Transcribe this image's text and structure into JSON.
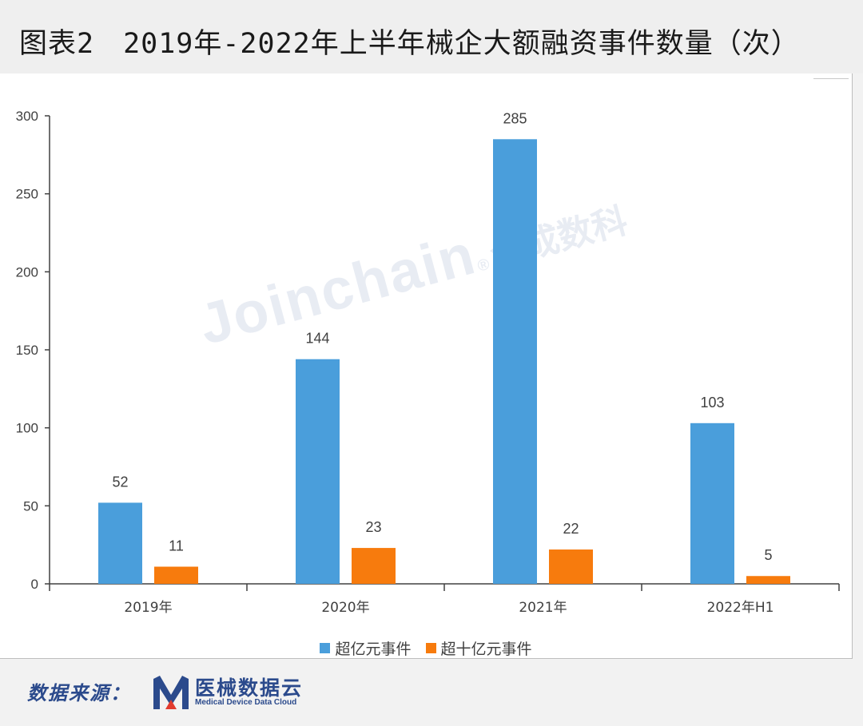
{
  "title": "图表2　2019年-2022年上半年械企大额融资事件数量（次）",
  "watermark": {
    "text": "Joinchain",
    "registered": "®",
    "cn": "众成数科"
  },
  "colors": {
    "series1": "#4a9edb",
    "series2": "#f77b0d",
    "brand": "#2b4a8c",
    "logo_accent": "#e23b2e"
  },
  "chart_data": {
    "type": "bar",
    "title": "",
    "xlabel": "",
    "ylabel": "",
    "categories": [
      "2019年",
      "2020年",
      "2021年",
      "2022年H1"
    ],
    "series": [
      {
        "name": "超亿元事件",
        "values": [
          52,
          144,
          285,
          103
        ]
      },
      {
        "name": "超十亿元事件",
        "values": [
          11,
          23,
          22,
          5
        ]
      }
    ],
    "ylim": [
      0,
      300
    ],
    "yticks": [
      0,
      50,
      100,
      150,
      200,
      250,
      300
    ],
    "grid": false,
    "legend": "bottom-center",
    "data_labels": true
  },
  "legend": [
    {
      "label": "超亿元事件"
    },
    {
      "label": "超十亿元事件"
    }
  ],
  "footer": {
    "source_label": "数据来源：",
    "logo_icon": "m-logo-icon",
    "logo_cn": "医械数据云",
    "logo_en": "Medical Device Data Cloud"
  }
}
